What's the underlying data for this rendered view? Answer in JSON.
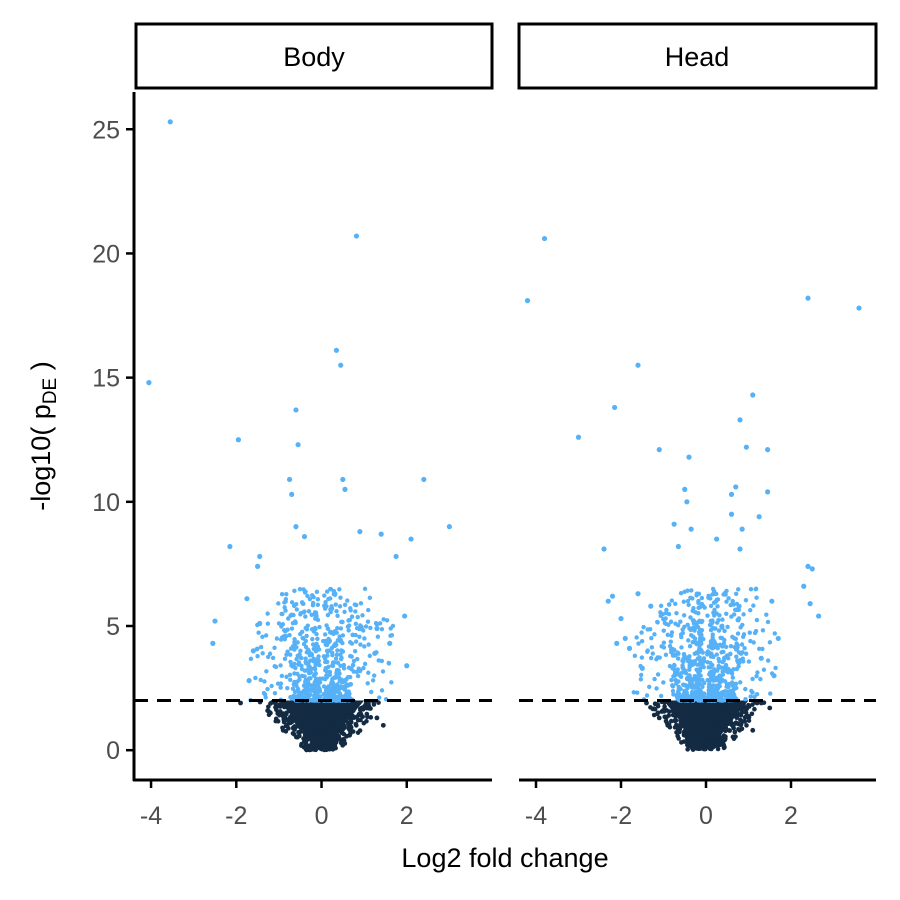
{
  "figure": {
    "xlabel": "Log2 fold change",
    "ylabel_main": "-log10( p",
    "ylabel_sub": "DE",
    "ylabel_end": " )"
  },
  "colors": {
    "significant": "#56b1f7",
    "not_significant": "#132b43",
    "threshold_line": "#000000",
    "axis": "#000000",
    "tick_text": "#4d4d4d"
  },
  "chart_data": {
    "type": "scatter",
    "facets": [
      "Body",
      "Head"
    ],
    "xlabel": "Log2 fold change",
    "ylabel": "-log10( pDE )",
    "xlim": [
      -4.4,
      4.0
    ],
    "ylim": [
      -1.2,
      26.5
    ],
    "x_ticks": [
      -4,
      -2,
      0,
      2
    ],
    "x_tick_labels": [
      "-4",
      "-2",
      "0",
      "2"
    ],
    "y_ticks": [
      0,
      5,
      10,
      15,
      20,
      25
    ],
    "y_tick_labels": [
      "0",
      "5",
      "10",
      "15",
      "20",
      "25"
    ],
    "threshold": 2,
    "threshold_style": "dashed",
    "grid": false,
    "series": [
      {
        "facet": "Body",
        "highlighted_points": [
          [
            -4.05,
            14.8
          ],
          [
            -3.55,
            25.3
          ],
          [
            0.82,
            20.7
          ],
          [
            0.35,
            16.1
          ],
          [
            0.45,
            15.5
          ],
          [
            -0.6,
            13.7
          ],
          [
            -1.95,
            12.5
          ],
          [
            -0.55,
            12.3
          ],
          [
            2.4,
            10.9
          ],
          [
            0.5,
            10.9
          ],
          [
            0.55,
            10.5
          ],
          [
            -0.75,
            10.9
          ],
          [
            -0.7,
            10.3
          ],
          [
            3.0,
            9.0
          ],
          [
            -0.6,
            9.0
          ],
          [
            -0.4,
            8.6
          ],
          [
            1.4,
            8.7
          ],
          [
            2.1,
            8.5
          ],
          [
            -2.15,
            8.2
          ],
          [
            1.75,
            7.8
          ],
          [
            -1.45,
            7.8
          ],
          [
            -1.5,
            7.4
          ],
          [
            -1.75,
            6.1
          ],
          [
            -2.5,
            5.2
          ],
          [
            -2.55,
            4.3
          ],
          [
            1.95,
            5.4
          ],
          [
            0.9,
            8.8
          ],
          [
            -1.45,
            5.1
          ],
          [
            1.3,
            4.9
          ],
          [
            1.6,
            4.3
          ],
          [
            2.0,
            3.4
          ],
          [
            -1.7,
            2.8
          ],
          [
            -1.6,
            4.0
          ],
          [
            1.25,
            3.9
          ],
          [
            0.9,
            3.2
          ]
        ],
        "core_points": [
          [
            -1.9,
            1.9
          ],
          [
            -1.2,
            1.5
          ],
          [
            1.3,
            1.3
          ],
          [
            1.45,
            1.0
          ],
          [
            -0.9,
            0.8
          ],
          [
            1.1,
            1.9
          ]
        ]
      },
      {
        "facet": "Head",
        "highlighted_points": [
          [
            -4.2,
            18.1
          ],
          [
            -3.8,
            20.6
          ],
          [
            2.4,
            18.2
          ],
          [
            3.6,
            17.8
          ],
          [
            -1.6,
            15.5
          ],
          [
            -2.15,
            13.8
          ],
          [
            -3.0,
            12.6
          ],
          [
            1.1,
            14.3
          ],
          [
            0.8,
            13.3
          ],
          [
            -1.1,
            12.1
          ],
          [
            -0.4,
            11.8
          ],
          [
            0.95,
            12.2
          ],
          [
            1.45,
            12.1
          ],
          [
            1.45,
            10.4
          ],
          [
            -0.5,
            10.5
          ],
          [
            -0.45,
            10.0
          ],
          [
            0.6,
            10.3
          ],
          [
            0.7,
            10.6
          ],
          [
            1.25,
            9.4
          ],
          [
            0.6,
            9.5
          ],
          [
            -0.75,
            9.1
          ],
          [
            -0.35,
            8.9
          ],
          [
            -0.65,
            8.2
          ],
          [
            0.85,
            8.9
          ],
          [
            0.25,
            8.5
          ],
          [
            -2.4,
            8.1
          ],
          [
            0.8,
            8.1
          ],
          [
            2.4,
            7.4
          ],
          [
            2.5,
            7.3
          ],
          [
            2.3,
            6.6
          ],
          [
            -1.6,
            6.3
          ],
          [
            -2.2,
            6.2
          ],
          [
            -2.3,
            6.0
          ],
          [
            1.55,
            6.0
          ],
          [
            2.45,
            5.9
          ],
          [
            2.65,
            5.4
          ],
          [
            -2.0,
            5.3
          ],
          [
            -1.9,
            4.5
          ],
          [
            -1.8,
            4.1
          ],
          [
            -2.1,
            4.3
          ],
          [
            -1.3,
            5.8
          ],
          [
            1.7,
            4.5
          ],
          [
            1.3,
            3.7
          ],
          [
            1.6,
            3.0
          ],
          [
            -1.5,
            3.3
          ]
        ],
        "core_points": [
          [
            -1.4,
            1.9
          ],
          [
            -1.1,
            1.3
          ],
          [
            1.3,
            1.9
          ],
          [
            1.5,
            1.7
          ],
          [
            -0.9,
            1.0
          ],
          [
            1.1,
            0.8
          ]
        ]
      }
    ]
  }
}
